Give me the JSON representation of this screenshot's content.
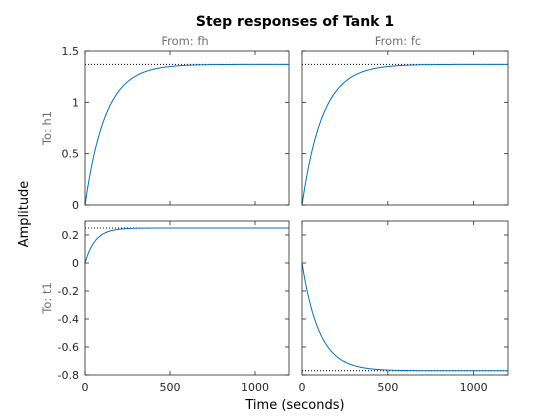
{
  "chart_data": {
    "type": "line",
    "title": "Step responses of Tank 1",
    "xlabel": "Time (seconds)",
    "ylabel": "Amplitude",
    "input_labels": [
      "From: fh",
      "From: fc"
    ],
    "output_labels": [
      "To: h1",
      "To: t1"
    ],
    "xlim": [
      0,
      1200
    ],
    "x_ticks": [
      "0",
      "500",
      "1000"
    ],
    "x_tick_values": [
      0,
      500,
      1000
    ],
    "line_color": "#0072BD",
    "steady_state_line_color": "#000000",
    "grid": false,
    "rows": [
      {
        "ylim": [
          0,
          1.5
        ],
        "y_ticks": [
          "0",
          "0.5",
          "1",
          "1.5"
        ],
        "y_tick_values": [
          0,
          0.5,
          1,
          1.5
        ],
        "panels": [
          {
            "steady_state": 1.37,
            "time_constant": 120,
            "x": [
              0,
              50,
              100,
              150,
              200,
              300,
              400,
              600,
              800,
              1200
            ],
            "y": [
              0,
              0.47,
              0.78,
              0.99,
              1.12,
              1.26,
              1.33,
              1.36,
              1.37,
              1.37
            ]
          },
          {
            "steady_state": 1.37,
            "time_constant": 120,
            "x": [
              0,
              50,
              100,
              150,
              200,
              300,
              400,
              600,
              800,
              1200
            ],
            "y": [
              0,
              0.47,
              0.78,
              0.99,
              1.12,
              1.26,
              1.33,
              1.36,
              1.37,
              1.37
            ]
          }
        ]
      },
      {
        "ylim": [
          -0.8,
          0.3
        ],
        "y_ticks": [
          "0.2",
          "0",
          "-0.2",
          "-0.4",
          "-0.6",
          "-0.8"
        ],
        "y_tick_values": [
          0.2,
          0,
          -0.2,
          -0.4,
          -0.6,
          -0.8
        ],
        "panels": [
          {
            "steady_state": 0.25,
            "time_constant": 60,
            "x": [
              0,
              25,
              50,
              100,
              150,
              200,
              300,
              500,
              1200
            ],
            "y": [
              0,
              0.085,
              0.14,
              0.202,
              0.229,
              0.241,
              0.249,
              0.25,
              0.25
            ]
          },
          {
            "steady_state": -0.77,
            "time_constant": 100,
            "x": [
              0,
              50,
              100,
              150,
              200,
              300,
              400,
              600,
              1200
            ],
            "y": [
              0,
              -0.3,
              -0.49,
              -0.6,
              -0.67,
              -0.73,
              -0.76,
              -0.77,
              -0.77
            ]
          }
        ]
      }
    ]
  }
}
